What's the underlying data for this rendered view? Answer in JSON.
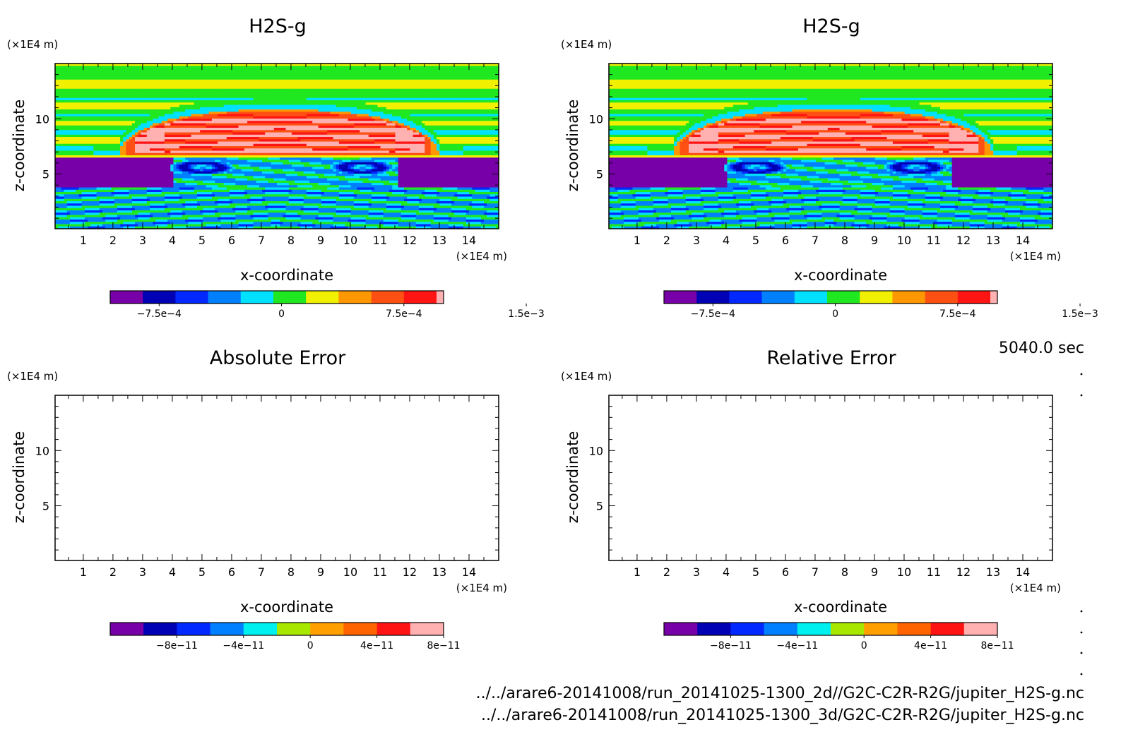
{
  "time_label": "5040.0 sec",
  "file_paths": [
    "../../arare6-20141008/run_20141025-1300_2d//G2C-C2R-R2G/jupiter_H2S-g.nc",
    "../../arare6-20141008/run_20141025-1300_3d/G2C-C2R-R2G/jupiter_H2S-g.nc"
  ],
  "chart_data": [
    {
      "type": "heatmap",
      "title": "H2S-g",
      "xlabel": "x-coordinate",
      "ylabel": "z-coordinate",
      "x_unit": "(×1E4 m)",
      "y_unit": "(×1E4 m)",
      "xlim": [
        0.05,
        15.0
      ],
      "ylim": [
        0.05,
        15.0
      ],
      "xticks": [
        1,
        2,
        3,
        4,
        5,
        6,
        7,
        8,
        9,
        10,
        11,
        12,
        13,
        14
      ],
      "yticks": [
        5,
        10
      ],
      "grid": false,
      "colorbar": {
        "levels": [
          -0.00105,
          -0.00085,
          -0.00065,
          -0.00045,
          -0.00025,
          -5e-05,
          0.00015,
          0.00035,
          0.00055,
          0.00075,
          0.00095,
          0.00115,
          0.00135,
          0.00155
        ],
        "colors": [
          "#7800a8",
          "#0000b4",
          "#0028ff",
          "#0080ff",
          "#00e0ff",
          "#20e820",
          "#f0f000",
          "#ff9800",
          "#ff5014",
          "#ff1414",
          "#ffb0b0"
        ],
        "tick_labels": [
          "−7.5e−4",
          "0",
          "7.5e−4",
          "1.5e−3"
        ],
        "tick_values": [
          -0.00075,
          0,
          0.00075,
          0.0015
        ]
      },
      "field": {
        "description": "Bubble of positive H2S-g anomaly ~6.8–10.8 (×1E4 m) in z centred at x~7.5; negative layer 3.8–6.5 below; layered background",
        "plume_top": 10.8,
        "plume_bottom": 6.6,
        "plume_x_range": [
          2.2,
          13.0
        ],
        "negative_layer": [
          3.8,
          6.5
        ]
      }
    },
    {
      "type": "heatmap",
      "title": "H2S-g",
      "xlabel": "x-coordinate",
      "ylabel": "z-coordinate",
      "x_unit": "(×1E4 m)",
      "y_unit": "(×1E4 m)",
      "xlim": [
        0.05,
        15.0
      ],
      "ylim": [
        0.05,
        15.0
      ],
      "xticks": [
        1,
        2,
        3,
        4,
        5,
        6,
        7,
        8,
        9,
        10,
        11,
        12,
        13,
        14
      ],
      "yticks": [
        5,
        10
      ],
      "grid": false,
      "colorbar": {
        "levels": [
          -0.00105,
          -0.00085,
          -0.00065,
          -0.00045,
          -0.00025,
          -5e-05,
          0.00015,
          0.00035,
          0.00055,
          0.00075,
          0.00095,
          0.00115,
          0.00135,
          0.00155
        ],
        "colors": [
          "#7800a8",
          "#0000b4",
          "#0028ff",
          "#0080ff",
          "#00e0ff",
          "#20e820",
          "#f0f000",
          "#ff9800",
          "#ff5014",
          "#ff1414",
          "#ffb0b0"
        ],
        "tick_labels": [
          "−7.5e−4",
          "0",
          "7.5e−4",
          "1.5e−3"
        ],
        "tick_values": [
          -0.00075,
          0,
          0.00075,
          0.0015
        ]
      },
      "field": {
        "description": "Identical to the left panel",
        "plume_top": 10.8,
        "plume_bottom": 6.6,
        "plume_x_range": [
          2.2,
          13.0
        ],
        "negative_layer": [
          3.8,
          6.5
        ]
      }
    },
    {
      "type": "heatmap",
      "title": "Absolute Error",
      "xlabel": "x-coordinate",
      "ylabel": "z-coordinate",
      "x_unit": "(×1E4 m)",
      "y_unit": "(×1E4 m)",
      "xlim": [
        0.05,
        15.0
      ],
      "ylim": [
        0.05,
        15.0
      ],
      "xticks": [
        1,
        2,
        3,
        4,
        5,
        6,
        7,
        8,
        9,
        10,
        11,
        12,
        13,
        14
      ],
      "yticks": [
        5,
        10
      ],
      "grid": false,
      "colorbar": {
        "levels": [
          -1.2e-10,
          -1e-10,
          -8e-11,
          -6e-11,
          -4e-11,
          -2e-11,
          0,
          2e-11,
          4e-11,
          6e-11,
          8e-11,
          1e-10
        ],
        "colors": [
          "#7800a8",
          "#0000b4",
          "#0028ff",
          "#0080ff",
          "#00f0f0",
          "#a8e800",
          "#ffa000",
          "#ff6400",
          "#ff1414",
          "#ffb0b0"
        ],
        "tick_labels": [
          "−8e−11",
          "−4e−11",
          "0",
          "4e−11",
          "8e−11"
        ],
        "tick_values": [
          -8e-11,
          -4e-11,
          0,
          4e-11,
          8e-11
        ]
      },
      "field": {
        "description": "Empty (no contours drawn)"
      }
    },
    {
      "type": "heatmap",
      "title": "Relative Error",
      "xlabel": "x-coordinate",
      "ylabel": "z-coordinate",
      "x_unit": "(×1E4 m)",
      "y_unit": "(×1E4 m)",
      "xlim": [
        0.05,
        15.0
      ],
      "ylim": [
        0.05,
        15.0
      ],
      "xticks": [
        1,
        2,
        3,
        4,
        5,
        6,
        7,
        8,
        9,
        10,
        11,
        12,
        13,
        14
      ],
      "yticks": [
        5,
        10
      ],
      "grid": false,
      "colorbar": {
        "levels": [
          -1.2e-10,
          -1e-10,
          -8e-11,
          -6e-11,
          -4e-11,
          -2e-11,
          0,
          2e-11,
          4e-11,
          6e-11,
          8e-11,
          1e-10
        ],
        "colors": [
          "#7800a8",
          "#0000b4",
          "#0028ff",
          "#0080ff",
          "#00f0f0",
          "#a8e800",
          "#ffa000",
          "#ff6400",
          "#ff1414",
          "#ffb0b0"
        ],
        "tick_labels": [
          "−8e−11",
          "−4e−11",
          "0",
          "4e−11",
          "8e−11"
        ],
        "tick_values": [
          -8e-11,
          -4e-11,
          0,
          4e-11,
          8e-11
        ]
      },
      "field": {
        "description": "Empty (no contours drawn)"
      }
    }
  ]
}
